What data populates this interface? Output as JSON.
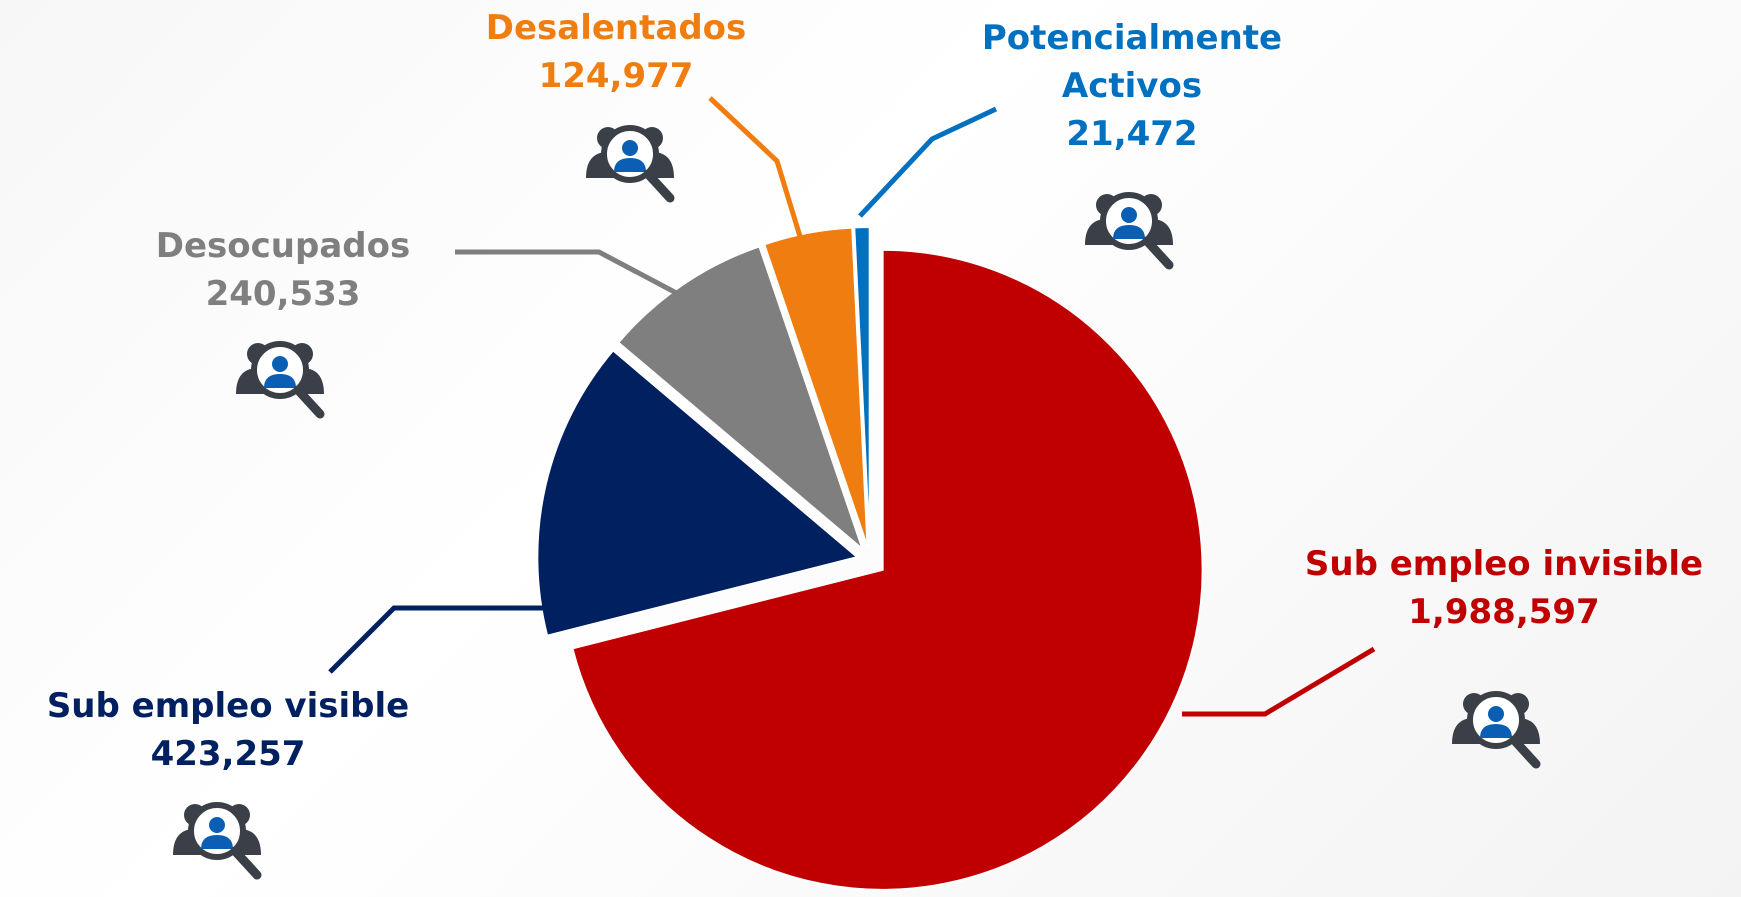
{
  "chart_data": {
    "type": "pie",
    "categories": [
      "Sub empleo invisible",
      "Sub empleo visible",
      "Desocupados",
      "Desalentados",
      "Potencialmente Activos"
    ],
    "values": [
      1988597,
      423257,
      240533,
      124977,
      21472
    ],
    "value_labels": [
      "1,988,597",
      "423,257",
      "240,533",
      "124,977",
      "21,472"
    ],
    "colors": [
      "#c00000",
      "#002060",
      "#7f7f7f",
      "#f07d10",
      "#0070c0"
    ]
  }
}
